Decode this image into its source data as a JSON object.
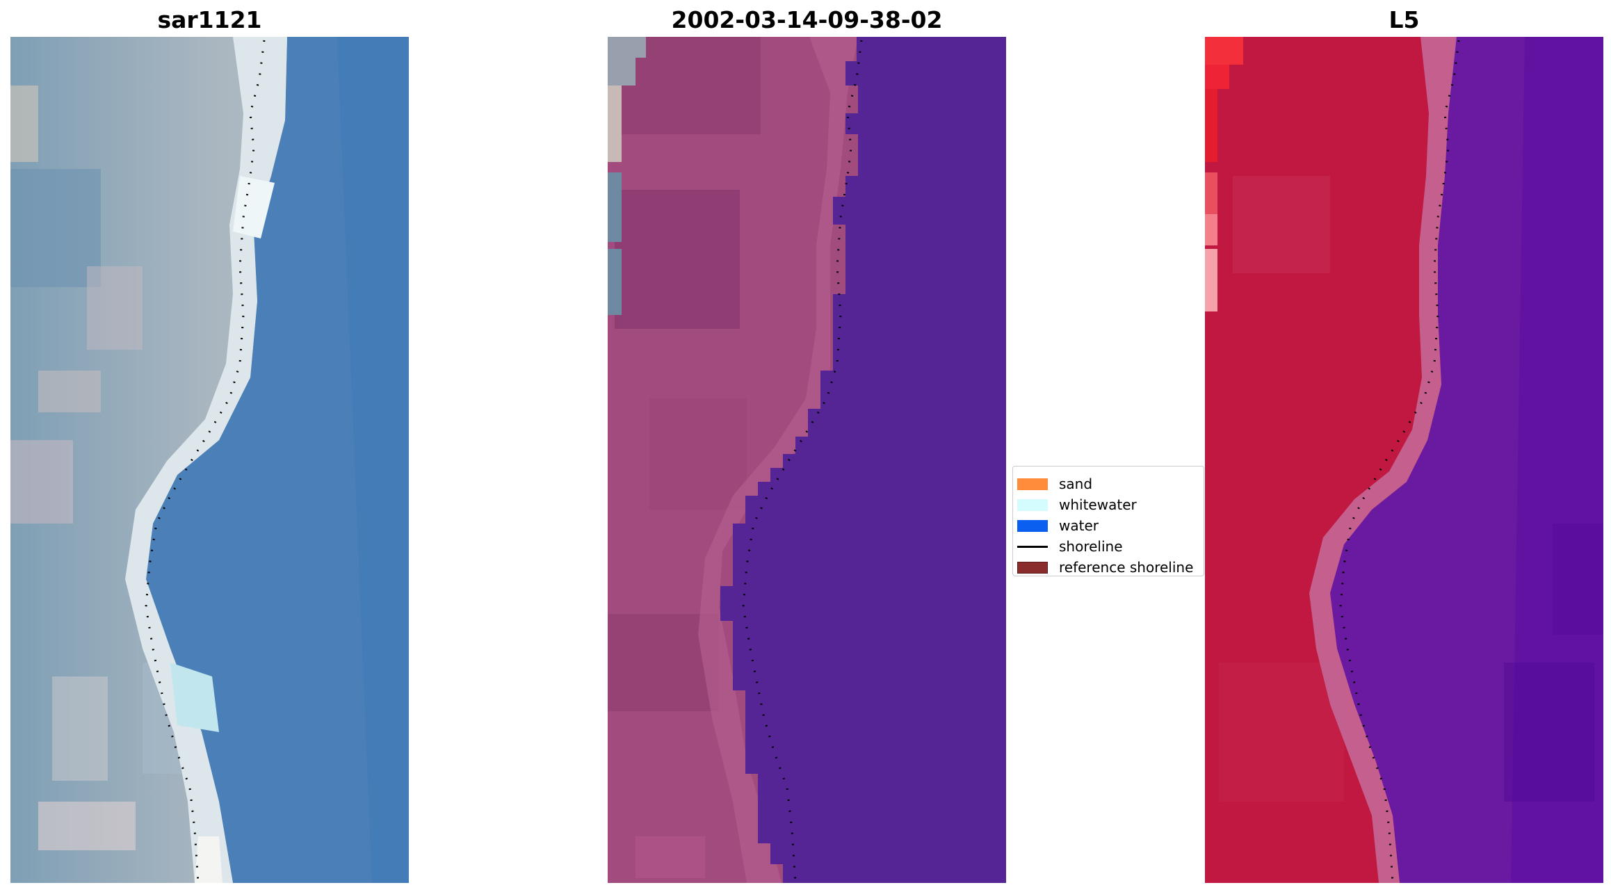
{
  "panels": [
    {
      "title": "sar1121"
    },
    {
      "title": "2002-03-14-09-38-02"
    },
    {
      "title": "L5"
    }
  ],
  "legend": {
    "items": [
      {
        "label": "sand",
        "color": "#ff8c3a"
      },
      {
        "label": "whitewater",
        "color": "#d4fbfd"
      },
      {
        "label": "water",
        "color": "#0a5ff0"
      },
      {
        "label": "shoreline",
        "color": "#000000"
      },
      {
        "label": "reference shoreline",
        "color": "#8b2c2c"
      }
    ]
  },
  "colors": {
    "classified_water": "#552595",
    "classified_land": "#a24b7f",
    "sar_water": "#4a7fb8",
    "l5_land": "#c01840",
    "l5_water": "#6a1aa0"
  }
}
